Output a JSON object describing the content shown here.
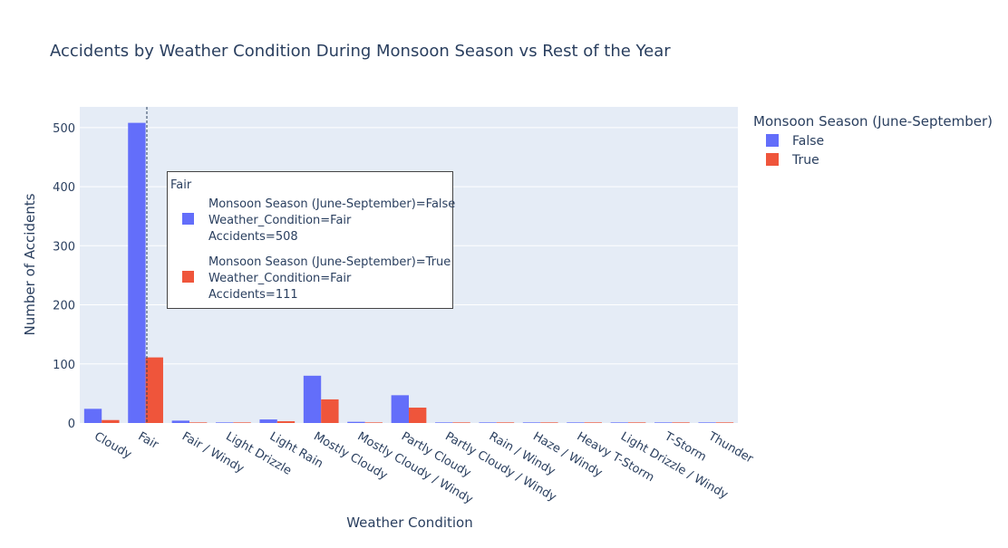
{
  "toolbar": {
    "icons": [
      "camera-icon",
      "zoom-icon",
      "pan-icon",
      "box-select-icon",
      "lasso-icon",
      "zoom-in-icon",
      "zoom-out-icon",
      "autoscale-icon",
      "reset-axes-icon",
      "plotly-logo-icon"
    ]
  },
  "colors": {
    "false": "#636efa",
    "true": "#ef553b",
    "plot_bg": "#e5ecf6",
    "text": "#2a3f5f"
  },
  "chart_data": {
    "type": "bar",
    "title": "Accidents by Weather Condition During Monsoon Season vs Rest of the Year",
    "xlabel": "Weather Condition",
    "ylabel": "Number of Accidents",
    "ylim": [
      0,
      535
    ],
    "yticks": [
      0,
      100,
      200,
      300,
      400,
      500
    ],
    "categories": [
      "Cloudy",
      "Fair",
      "Fair / Windy",
      "Light Drizzle",
      "Light Rain",
      "Mostly Cloudy",
      "Mostly Cloudy / Windy",
      "Partly Cloudy",
      "Partly Cloudy / Windy",
      "Rain / Windy",
      "Haze / Windy",
      "Heavy T-Storm",
      "Light Drizzle / Windy",
      "T-Storm",
      "Thunder"
    ],
    "series": [
      {
        "name": "False",
        "values": [
          24,
          508,
          4,
          1,
          6,
          80,
          2,
          47,
          1,
          1,
          1,
          1,
          1,
          1,
          1
        ]
      },
      {
        "name": "True",
        "values": [
          5,
          111,
          1,
          1,
          3,
          40,
          1,
          26,
          1,
          1,
          1,
          1,
          1,
          1,
          1
        ]
      }
    ],
    "legend": {
      "title": "Monsoon Season (June-September)",
      "position": "top-right"
    },
    "hover": {
      "category": "Fair",
      "entries": [
        {
          "lines": [
            "Monsoon Season (June-September)=False",
            "Weather_Condition=Fair",
            "Accidents=508"
          ]
        },
        {
          "lines": [
            "Monsoon Season (June-September)=True",
            "Weather_Condition=Fair",
            "Accidents=111"
          ]
        }
      ]
    }
  }
}
